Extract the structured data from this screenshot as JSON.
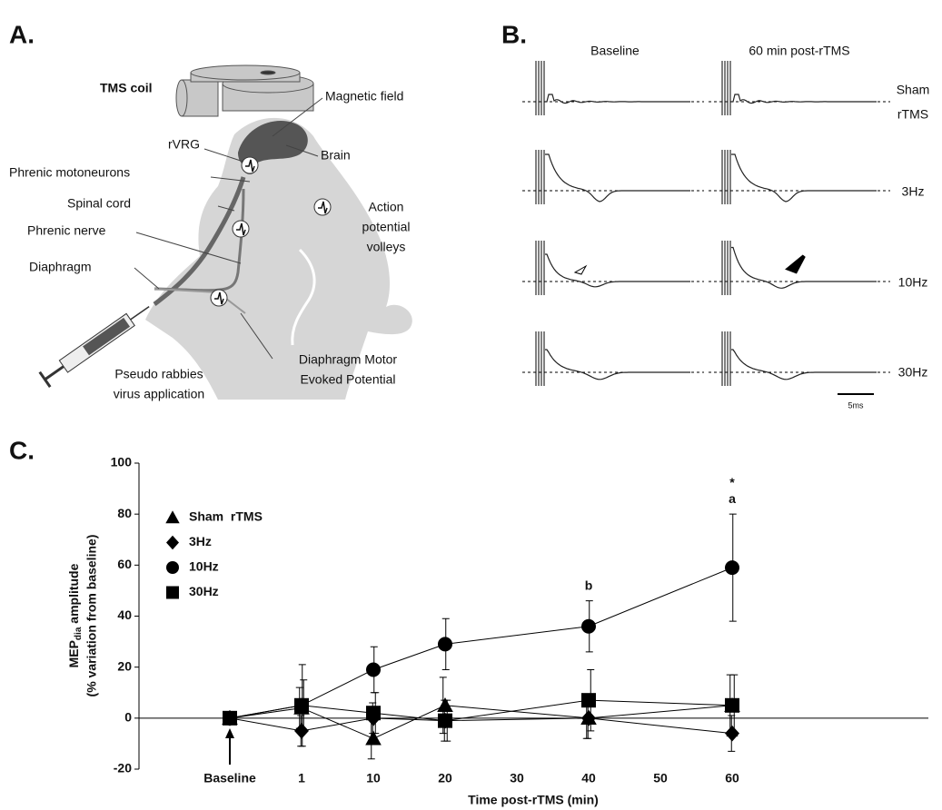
{
  "panel_a": {
    "label": "A.",
    "tms_coil": "TMS coil",
    "magnetic_field": "Magnetic field",
    "rvrg": "rVRG",
    "brain": "Brain",
    "phrenic_motoneurons": "Phrenic motoneurons",
    "spinal_cord": "Spinal cord",
    "phrenic_nerve": "Phrenic nerve",
    "diaphragm": "Diaphragm",
    "action_potential": [
      "Action",
      "potential",
      "volleys"
    ],
    "mep": [
      "Diaphragm Motor",
      "Evoked Potential"
    ],
    "virus": [
      "Pseudo rabbies",
      "virus application"
    ]
  },
  "panel_b": {
    "label": "B.",
    "columns": [
      "Baseline",
      "60 min post-rTMS"
    ],
    "rows": [
      [
        "Sham",
        "rTMS"
      ],
      [
        "3Hz"
      ],
      [
        "10Hz"
      ],
      [
        "30Hz"
      ]
    ],
    "scale_bar": "5ms"
  },
  "panel_c": {
    "label": "C."
  },
  "chart_data": {
    "type": "line",
    "xticks": [
      "Baseline",
      "1",
      "10",
      "20",
      "30",
      "40",
      "50",
      "60"
    ],
    "categories": [
      "Baseline",
      "1",
      "10",
      "20",
      "40",
      "60"
    ],
    "xlabel": "Time post-rTMS (min)",
    "ylabel": {
      "main": "MEP",
      "sub": "dia",
      "rest": " amplitude",
      "line2": "(% variation from baseline)"
    },
    "ylim": [
      -20,
      100
    ],
    "yticks": [
      -20,
      0,
      20,
      40,
      60,
      80,
      100
    ],
    "series": [
      {
        "name": "Sham  rTMS",
        "marker": "triangle",
        "color": "#000000",
        "values": [
          0,
          4,
          -8,
          5,
          0,
          5
        ],
        "errors": [
          0,
          8,
          8,
          11,
          8,
          12
        ]
      },
      {
        "name": "3Hz",
        "marker": "diamond",
        "color": "#000000",
        "values": [
          0,
          -5,
          0,
          -1,
          0,
          -6
        ],
        "errors": [
          0,
          6,
          6,
          8,
          8,
          7
        ]
      },
      {
        "name": "10Hz",
        "marker": "circle",
        "color": "#000000",
        "values": [
          0,
          5,
          19,
          29,
          36,
          59
        ],
        "errors": [
          0,
          16,
          9,
          10,
          10,
          21
        ]
      },
      {
        "name": "30Hz",
        "marker": "square",
        "color": "#000000",
        "values": [
          0,
          5,
          2,
          -1,
          7,
          5
        ],
        "errors": [
          0,
          10,
          8,
          8,
          12,
          12
        ]
      }
    ],
    "annotations": [
      {
        "text": "b",
        "category": "40"
      },
      {
        "text": "a",
        "category": "60"
      },
      {
        "text": "*",
        "category": "60"
      }
    ]
  }
}
